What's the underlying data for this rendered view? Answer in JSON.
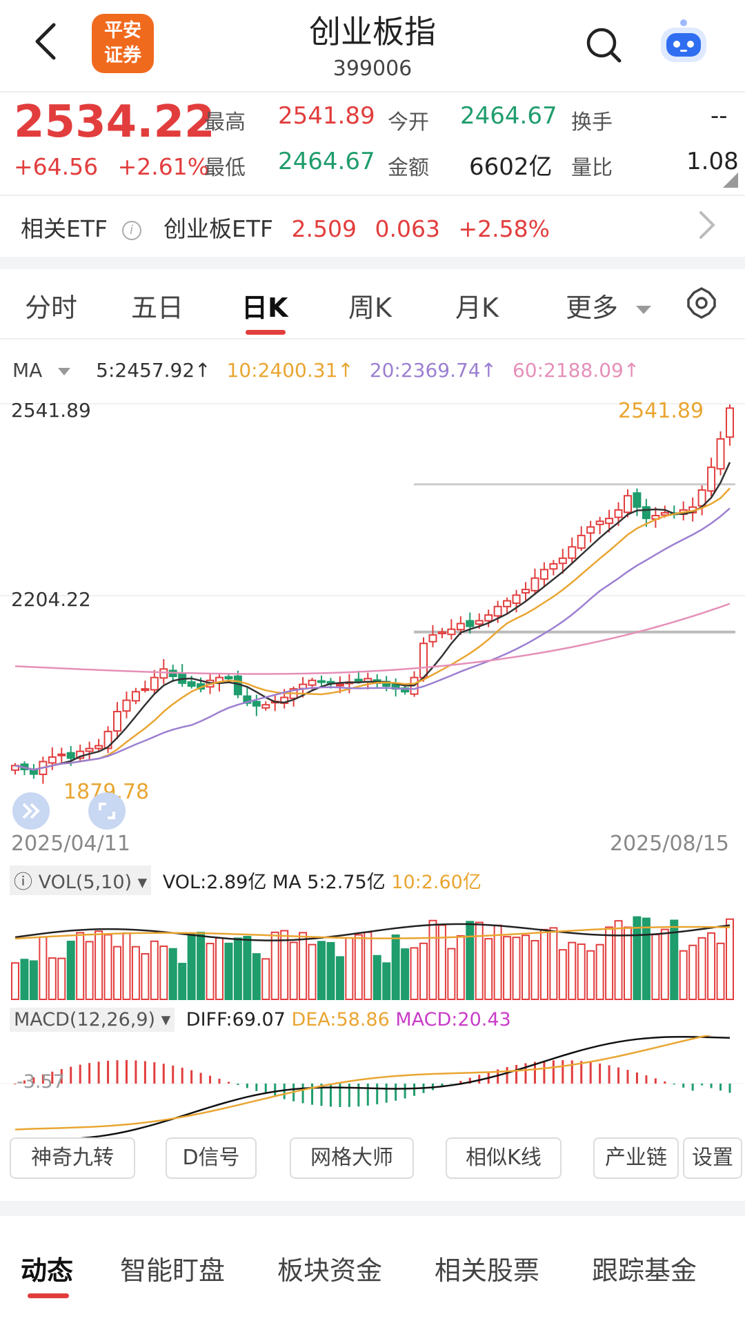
{
  "header": {
    "title": "创业板指",
    "code": "399006",
    "logo_line1": "平安",
    "logo_line2": "证券"
  },
  "quote": {
    "price": "2534.22",
    "change": "+64.56",
    "change_pct": "+2.61%",
    "high_label": "最高",
    "high": "2541.89",
    "open_label": "今开",
    "open": "2464.67",
    "turnover_label": "换手",
    "turnover": "--",
    "low_label": "最低",
    "low": "2464.67",
    "amount_label": "金额",
    "amount": "6602亿",
    "volratio_label": "量比",
    "volratio": "1.08"
  },
  "etf": {
    "label": "相关ETF",
    "name": "创业板ETF",
    "price": "2.509",
    "change": "0.063",
    "change_pct": "+2.58%"
  },
  "period_tabs": [
    "分时",
    "五日",
    "日K",
    "周K",
    "月K",
    "更多"
  ],
  "active_period": "日K",
  "ma_legend": {
    "label": "MA",
    "ma5": "5:2457.92↑",
    "ma10": "10:2400.31↑",
    "ma20": "20:2369.74↑",
    "ma60": "60:2188.09↑"
  },
  "colors": {
    "up": "#e23d3d",
    "down": "#1f9d6c",
    "ma5": "#333333",
    "ma10": "#e9a531",
    "ma20": "#9b7fd1",
    "ma60": "#e58fb8"
  },
  "price_axis": {
    "top": "2541.89",
    "mid": "2204.22",
    "max_marker": "2541.89",
    "min_marker": "1879.78"
  },
  "date_axis": {
    "start": "2025/04/11",
    "end": "2025/08/15"
  },
  "volume": {
    "indicator": "VOL(5,10)",
    "vol": "VOL:2.89亿",
    "ma5": "MA 5:2.75亿",
    "ma10": "10:2.60亿"
  },
  "macd": {
    "indicator": "MACD(12,26,9)",
    "diff": "DIFF:69.07",
    "dea": "DEA:58.86",
    "macd": "MACD:20.43",
    "axis_value": "-3.57"
  },
  "tools": [
    "神奇九转",
    "D信号",
    "网格大师",
    "相似K线",
    "产业链",
    "设置"
  ],
  "bottom_tabs": [
    "动态",
    "智能盯盘",
    "板块资金",
    "相关股票",
    "跟踪基金"
  ],
  "chart_data": {
    "type": "candlestick",
    "title": "创业板指 日K",
    "x_range": [
      "2025/04/11",
      "2025/08/15"
    ],
    "ylim": [
      1879.78,
      2541.89
    ],
    "labeled_values": {
      "high": 2541.89,
      "low": 1879.78,
      "mid_tick": 2204.22
    },
    "moving_averages": {
      "MA5": 2457.92,
      "MA10": 2400.31,
      "MA20": 2369.74,
      "MA60": 2188.09
    },
    "close_series": [
      1905,
      1898,
      1890,
      1912,
      1920,
      1925,
      1918,
      1930,
      1935,
      1940,
      1965,
      2000,
      2020,
      2035,
      2040,
      2060,
      2075,
      2062,
      2050,
      2045,
      2040,
      2055,
      2060,
      2058,
      2030,
      2015,
      2010,
      2012,
      2018,
      2025,
      2040,
      2048,
      2055,
      2052,
      2050,
      2048,
      2052,
      2055,
      2058,
      2050,
      2045,
      2040,
      2035,
      2060,
      2120,
      2135,
      2140,
      2145,
      2155,
      2150,
      2160,
      2170,
      2185,
      2195,
      2205,
      2215,
      2235,
      2250,
      2260,
      2270,
      2290,
      2310,
      2325,
      2335,
      2340,
      2355,
      2380,
      2360,
      2340,
      2345,
      2350,
      2348,
      2355,
      2360,
      2390,
      2430,
      2480,
      2534.22
    ],
    "volume_unit": "亿",
    "latest_volume": 2.89
  }
}
